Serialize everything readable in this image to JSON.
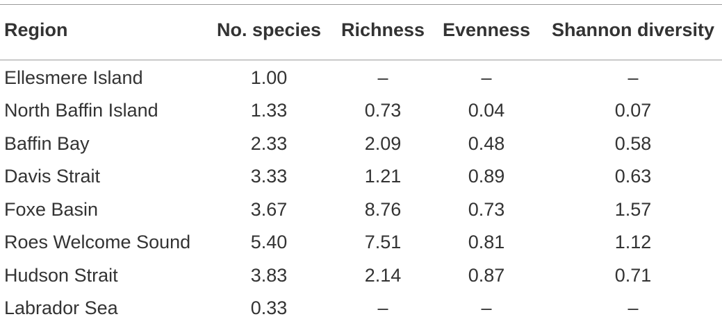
{
  "table": {
    "headers": [
      "Region",
      "No. species",
      "Richness",
      "Evenness",
      "Shannon diversity"
    ],
    "rows": [
      [
        "Ellesmere Island",
        "1.00",
        "–",
        "–",
        "–"
      ],
      [
        "North Baffin Island",
        "1.33",
        "0.73",
        "0.04",
        "0.07"
      ],
      [
        "Baffin Bay",
        "2.33",
        "2.09",
        "0.48",
        "0.58"
      ],
      [
        "Davis Strait",
        "3.33",
        "1.21",
        "0.89",
        "0.63"
      ],
      [
        "Foxe Basin",
        "3.67",
        "8.76",
        "0.73",
        "1.57"
      ],
      [
        "Roes Welcome Sound",
        "5.40",
        "7.51",
        "0.81",
        "1.12"
      ],
      [
        "Hudson Strait",
        "3.83",
        "2.14",
        "0.87",
        "0.71"
      ],
      [
        "Labrador Sea",
        "0.33",
        "–",
        "–",
        "–"
      ]
    ]
  }
}
